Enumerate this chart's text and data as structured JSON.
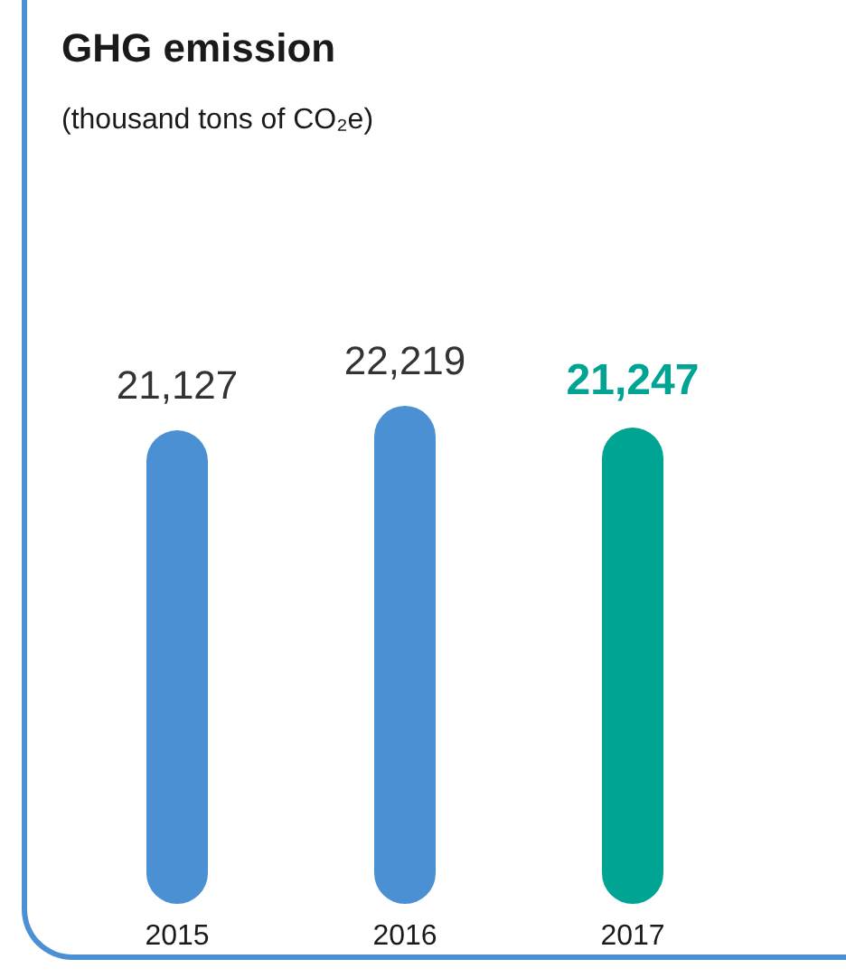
{
  "chart_data": {
    "type": "bar",
    "title": "GHG emission",
    "subtitle": "(thousand tons of CO₂e)",
    "categories": [
      "2015",
      "2016",
      "2017"
    ],
    "values": [
      21127,
      22219,
      21247
    ],
    "colors": [
      "#4a90d2",
      "#4a90d2",
      "#00a493"
    ],
    "value_labels": [
      "21,127",
      "22,219",
      "21,247"
    ]
  }
}
